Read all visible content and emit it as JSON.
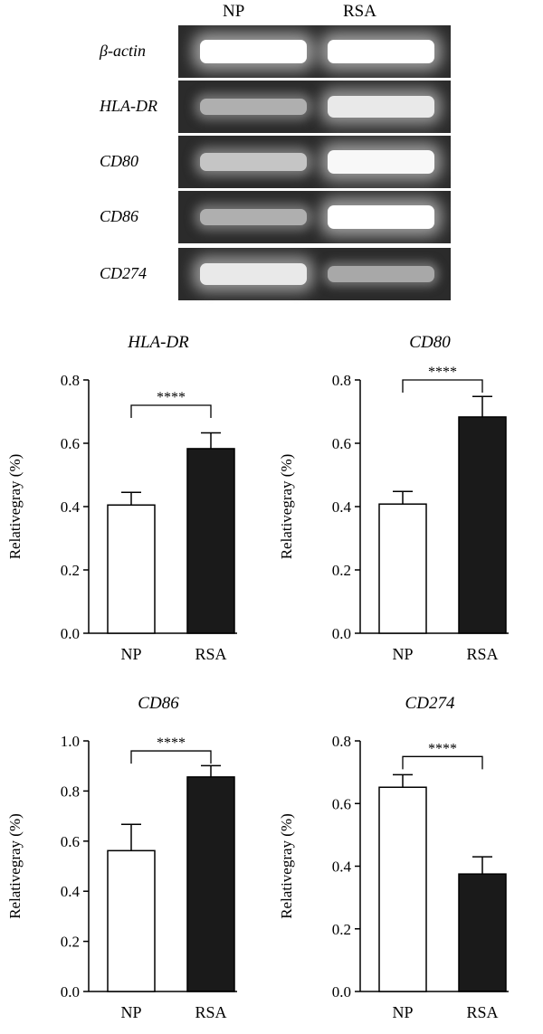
{
  "gel": {
    "lane_labels": [
      "NP",
      "RSA"
    ],
    "rows": [
      {
        "label": "β-actin",
        "np_intensity": 1.0,
        "rsa_intensity": 1.0
      },
      {
        "label": "HLA-DR",
        "np_intensity": 0.45,
        "rsa_intensity": 0.85
      },
      {
        "label": "CD80",
        "np_intensity": 0.6,
        "rsa_intensity": 0.95
      },
      {
        "label": "CD86",
        "np_intensity": 0.45,
        "rsa_intensity": 1.0
      },
      {
        "label": "CD274",
        "np_intensity": 0.85,
        "rsa_intensity": 0.4
      }
    ]
  },
  "chart_data": [
    {
      "type": "bar",
      "title": "HLA-DR",
      "ylabel": "Relativegray (%)",
      "categories": [
        "NP",
        "RSA"
      ],
      "values": [
        0.405,
        0.583
      ],
      "errors": [
        0.04,
        0.05
      ],
      "fills": [
        "#ffffff",
        "#1a1a1a"
      ],
      "ylim": [
        0,
        0.8
      ],
      "yticks": [
        "0.0",
        "0.2",
        "0.4",
        "0.6",
        "0.8"
      ],
      "significance": "****",
      "bracket_y": 0.72
    },
    {
      "type": "bar",
      "title": "CD80",
      "ylabel": "Relativegray (%)",
      "categories": [
        "NP",
        "RSA"
      ],
      "values": [
        0.408,
        0.683
      ],
      "errors": [
        0.04,
        0.065
      ],
      "fills": [
        "#ffffff",
        "#1a1a1a"
      ],
      "ylim": [
        0,
        0.8
      ],
      "yticks": [
        "0.0",
        "0.2",
        "0.4",
        "0.6",
        "0.8"
      ],
      "significance": "****",
      "bracket_y": 0.8
    },
    {
      "type": "bar",
      "title": "CD86",
      "ylabel": "Relativegray (%)",
      "categories": [
        "NP",
        "RSA"
      ],
      "values": [
        0.562,
        0.856
      ],
      "errors": [
        0.105,
        0.045
      ],
      "fills": [
        "#ffffff",
        "#1a1a1a"
      ],
      "ylim": [
        0,
        1.0
      ],
      "yticks": [
        "0.0",
        "0.2",
        "0.4",
        "0.6",
        "0.8",
        "1.0"
      ],
      "significance": "****",
      "bracket_y": 0.96
    },
    {
      "type": "bar",
      "title": "CD274",
      "ylabel": "Relativegray (%)",
      "categories": [
        "NP",
        "RSA"
      ],
      "values": [
        0.652,
        0.375
      ],
      "errors": [
        0.04,
        0.055
      ],
      "fills": [
        "#ffffff",
        "#1a1a1a"
      ],
      "ylim": [
        0,
        0.8
      ],
      "yticks": [
        "0.0",
        "0.2",
        "0.4",
        "0.6",
        "0.8"
      ],
      "significance": "****",
      "bracket_y": 0.75
    }
  ]
}
